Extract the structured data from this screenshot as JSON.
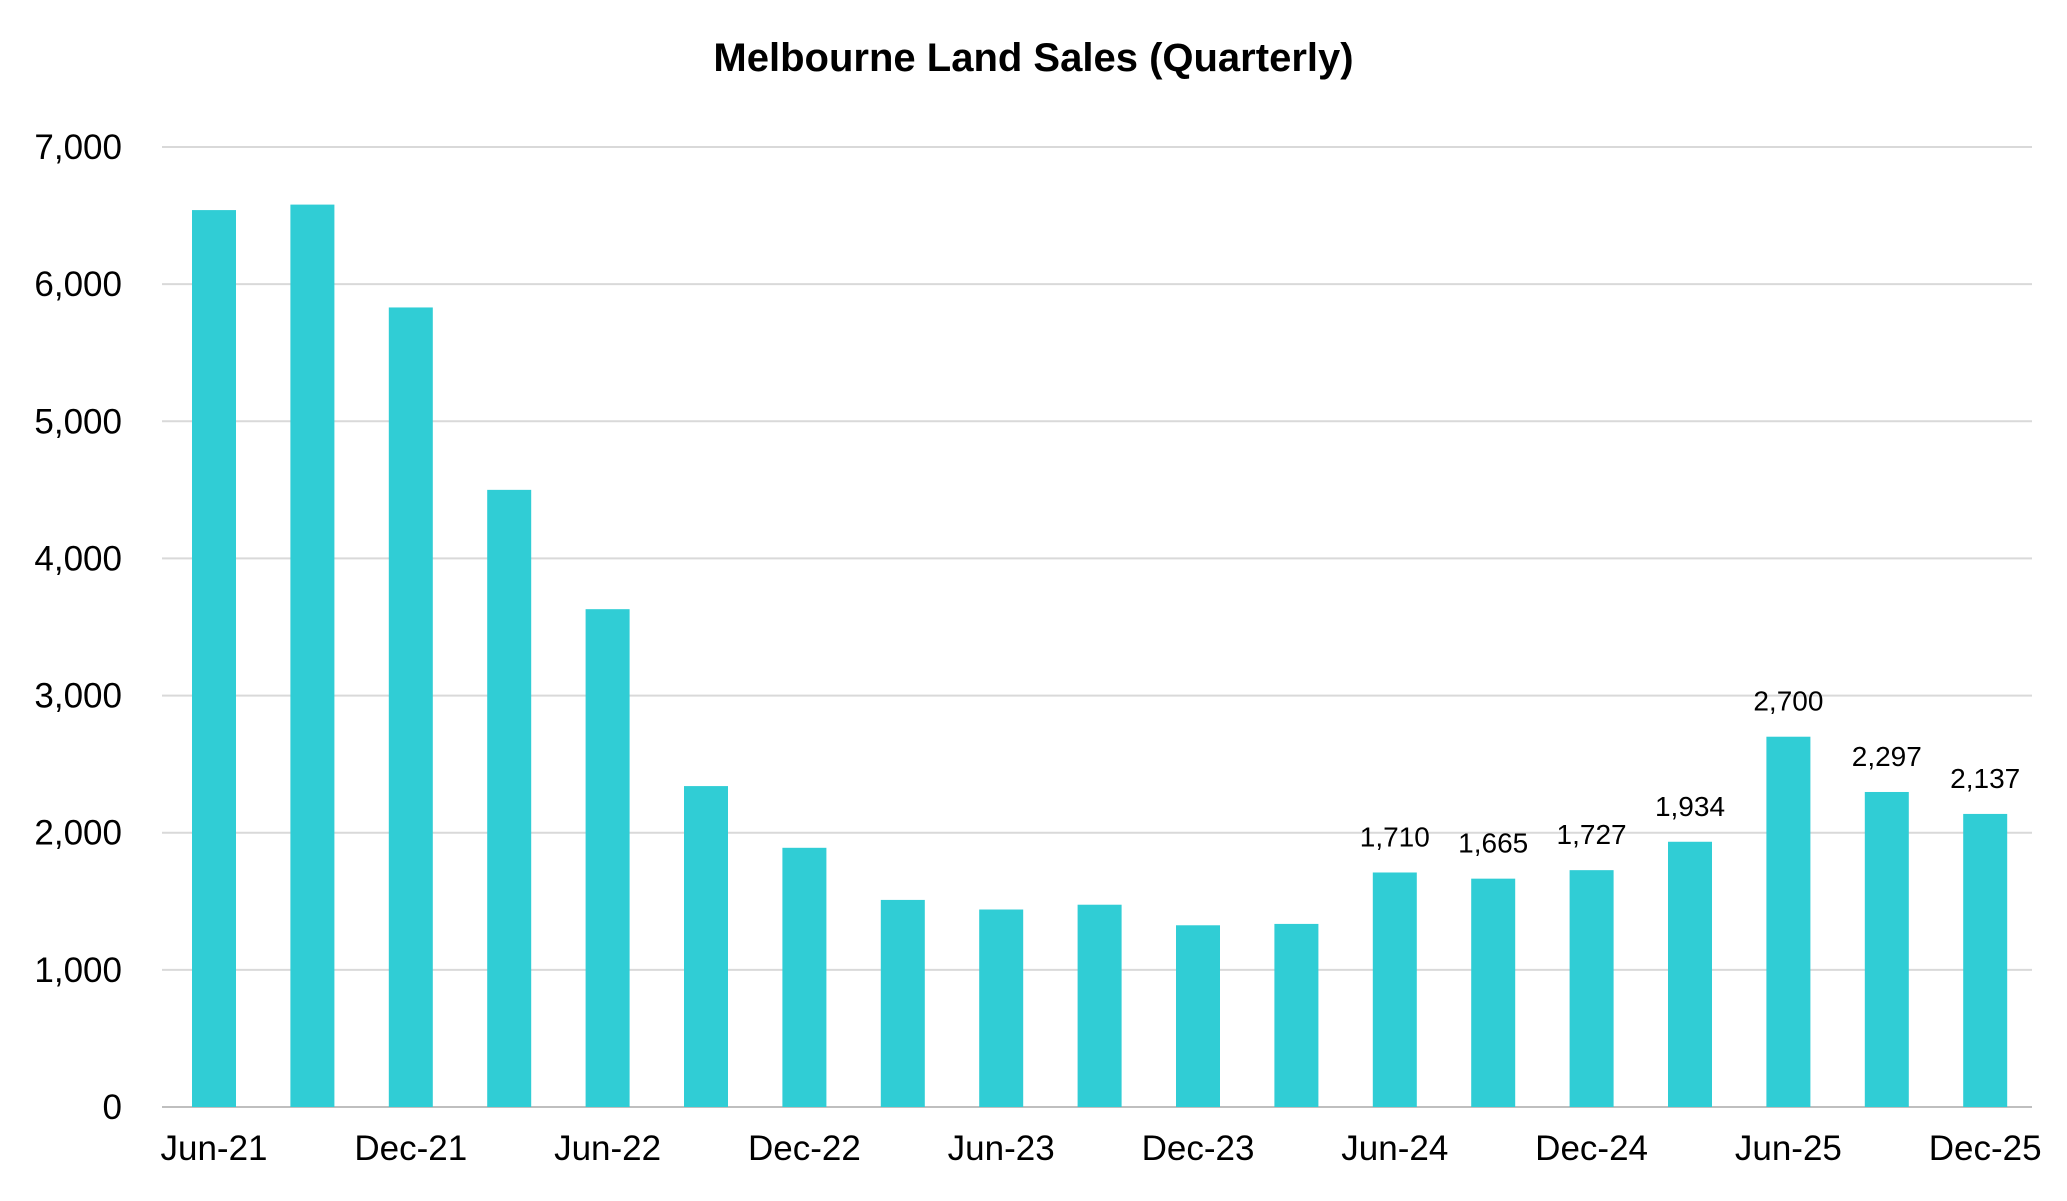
{
  "chart_data": {
    "type": "bar",
    "title": "Melbourne Land Sales (Quarterly)",
    "xlabel": "",
    "ylabel": "",
    "ylim": [
      0,
      7000
    ],
    "yticks": [
      0,
      1000,
      2000,
      3000,
      4000,
      5000,
      6000,
      7000
    ],
    "ytick_labels": [
      "0",
      "1,000",
      "2,000",
      "3,000",
      "4,000",
      "5,000",
      "6,000",
      "7,000"
    ],
    "categories": [
      "Jun-21",
      "Sep-21",
      "Dec-21",
      "Mar-22",
      "Jun-22",
      "Sep-22",
      "Dec-22",
      "Mar-23",
      "Jun-23",
      "Sep-23",
      "Dec-23",
      "Mar-24",
      "Jun-24",
      "Sep-24",
      "Dec-24",
      "Mar-25",
      "Jun-25",
      "Sep-25",
      "Dec-25"
    ],
    "xtick_labels": [
      "Jun-21",
      "",
      "Dec-21",
      "",
      "Jun-22",
      "",
      "Dec-22",
      "",
      "Jun-23",
      "",
      "Dec-23",
      "",
      "Jun-24",
      "",
      "Dec-24",
      "",
      "Jun-25",
      "",
      "Dec-25"
    ],
    "values": [
      6540,
      6580,
      5830,
      4500,
      3630,
      2340,
      1890,
      1510,
      1440,
      1475,
      1325,
      1335,
      1710,
      1665,
      1727,
      1934,
      2700,
      2297,
      2137
    ],
    "data_labels": [
      "",
      "",
      "",
      "",
      "",
      "",
      "",
      "",
      "",
      "",
      "",
      "",
      "1,710",
      "1,665",
      "1,727",
      "1,934",
      "2,700",
      "2,297",
      "2,137"
    ],
    "grid": true,
    "legend": "none",
    "colors": {
      "bar": "#30cdd5",
      "grid": "#d9d9d9",
      "axis": "#bfbfbf",
      "text": "#000000"
    }
  }
}
